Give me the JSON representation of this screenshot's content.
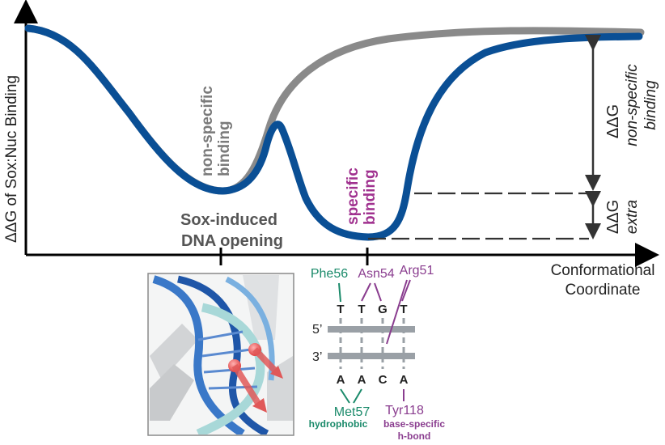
{
  "axes": {
    "y_label": "ΔΔG of Sox:Nuc Binding",
    "x_label_line1": "Conformational",
    "x_label_line2": "Coordinate"
  },
  "curves": {
    "nonspecific_color": "#8a8a8a",
    "specific_color": "#0a4f95"
  },
  "annotations": {
    "nonspecific_line1": "non-specific",
    "nonspecific_line2": "binding",
    "specific_line1": "specific",
    "specific_line2": "binding",
    "opening_line1": "Sox-induced",
    "opening_line2": "DNA opening",
    "ddg_nonspecific_symbol": "ΔΔG",
    "ddg_nonspecific_line1": "non-specific",
    "ddg_nonspecific_line2": "binding",
    "ddg_extra_symbol": "ΔΔG",
    "ddg_extra_word": "extra",
    "gray_label_color": "#7a7a7a",
    "magenta_color": "#a0318f"
  },
  "dna": {
    "strand_top_label": "5’",
    "strand_bottom_label": "3’",
    "top_bases": [
      "T",
      "T",
      "G",
      "T"
    ],
    "bottom_bases": [
      "A",
      "A",
      "C",
      "A"
    ],
    "residues_top": {
      "phe56": "Phe56",
      "asn54": "Asn54",
      "arg51": "Arg51"
    },
    "residues_bottom": {
      "met57": "Met57",
      "tyr118": "Tyr118"
    },
    "hydrophobic": "hydrophobic",
    "base_specific_line1": "base-specific",
    "base_specific_line2": "h-bond",
    "green_color": "#1a8a6a",
    "purple_color": "#8a3d8f",
    "strand_color": "#9aa0a6"
  }
}
